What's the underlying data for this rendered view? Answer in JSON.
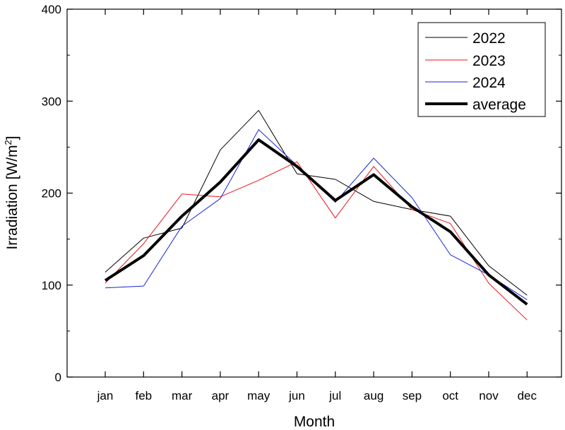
{
  "chart_data": {
    "type": "line",
    "title": "",
    "xlabel": "Month",
    "ylabel": "Irradiation [W/m",
    "ylabel_sup": "2",
    "ylabel_close": "]",
    "categories": [
      "jan",
      "feb",
      "mar",
      "apr",
      "may",
      "jun",
      "jul",
      "aug",
      "sep",
      "oct",
      "nov",
      "dec"
    ],
    "ylim": [
      0,
      400
    ],
    "yticks": [
      "0",
      "100",
      "200",
      "300",
      "400"
    ],
    "grid": false,
    "legend_position": "top-right",
    "series": [
      {
        "name": "2022",
        "color": "#000000",
        "width": "thin",
        "values": [
          114,
          151,
          162,
          247,
          290,
          221,
          215,
          191,
          182,
          175,
          121,
          89
        ]
      },
      {
        "name": "2023",
        "color": "#e8151b",
        "width": "thin",
        "values": [
          102,
          145,
          199,
          196,
          214,
          234,
          173,
          229,
          182,
          167,
          102,
          62
        ]
      },
      {
        "name": "2024",
        "color": "#1a24d6",
        "width": "thin",
        "values": [
          97,
          99,
          164,
          194,
          269,
          230,
          190,
          238,
          195,
          133,
          111,
          84
        ]
      },
      {
        "name": "average",
        "color": "#000000",
        "width": "thick",
        "values": [
          105,
          132,
          175,
          212,
          258,
          229,
          192,
          220,
          185,
          158,
          111,
          79
        ]
      }
    ]
  }
}
